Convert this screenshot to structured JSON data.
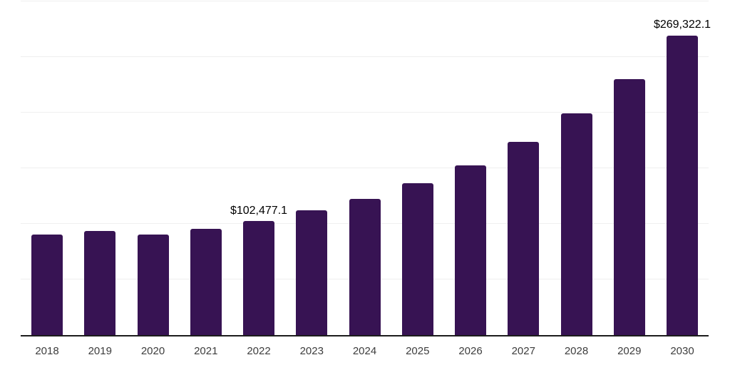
{
  "chart_data": {
    "type": "bar",
    "title": "",
    "xlabel": "",
    "ylabel": "",
    "categories": [
      "2018",
      "2019",
      "2020",
      "2021",
      "2022",
      "2023",
      "2024",
      "2025",
      "2026",
      "2027",
      "2028",
      "2029",
      "2030"
    ],
    "values": [
      90700,
      93900,
      90100,
      95800,
      102477.1,
      111900,
      122400,
      136500,
      152900,
      173700,
      199400,
      230400,
      269322.1
    ],
    "data_labels": {
      "2022": "$102,477.1",
      "2030": "$269,322.1"
    },
    "ylim": [
      0,
      300000
    ],
    "gridline_step": 50000,
    "grid": true,
    "legend": false,
    "y_axis_tick_labels_visible": false,
    "bar_color": "#371353",
    "axis_line_color": "#1c1c1c",
    "gridline_color": "#efefef",
    "tick_label_color": "#3d3d3d",
    "data_label_color": "#000000",
    "background_color": "#ffffff"
  }
}
